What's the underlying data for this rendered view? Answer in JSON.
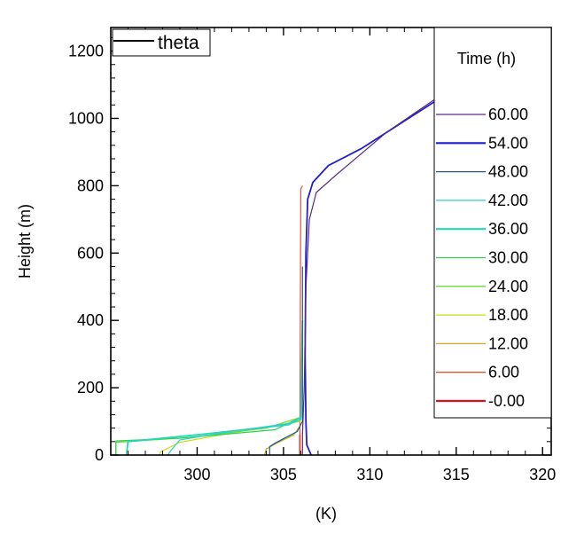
{
  "chart_data": {
    "type": "line",
    "xlabel": "(K)",
    "ylabel": "Height (m)",
    "xlim": [
      295,
      320.5
    ],
    "ylim": [
      0,
      1270
    ],
    "xticks": [
      300,
      305,
      310,
      315,
      320
    ],
    "yticks": [
      0,
      200,
      400,
      600,
      800,
      1000,
      1200
    ],
    "title_box": {
      "label": "theta"
    },
    "legend": {
      "title": "Time (h)",
      "placement": "right",
      "entries": [
        {
          "label": "60.00",
          "color": "#5b2a86"
        },
        {
          "label": "54.00",
          "color": "#1f1fcc"
        },
        {
          "label": "48.00",
          "color": "#1b5f8f"
        },
        {
          "label": "42.00",
          "color": "#33cccc"
        },
        {
          "label": "36.00",
          "color": "#22d9b8"
        },
        {
          "label": "30.00",
          "color": "#33cc55"
        },
        {
          "label": "24.00",
          "color": "#66dd33"
        },
        {
          "label": "18.00",
          "color": "#ccdd11"
        },
        {
          "label": "12.00",
          "color": "#ccaa22"
        },
        {
          "label": " 6.00",
          "color": "#dd5533"
        },
        {
          "label": "-0.00",
          "color": "#dd1111"
        }
      ]
    },
    "series": [
      {
        "name": "60.00",
        "color": "#5b2a86",
        "x": [
          306.1,
          306.1,
          306.2,
          306.3,
          306.5,
          306.9,
          308.0,
          311,
          315,
          320.2
        ],
        "y": [
          0,
          60,
          200,
          500,
          700,
          780,
          830,
          960,
          1100,
          1262
        ]
      },
      {
        "name": "54.00",
        "color": "#1f1fcc",
        "x": [
          306.6,
          306.35,
          306.3,
          306.25,
          306.3,
          306.4,
          306.7,
          307.6,
          309.5,
          320.2
        ],
        "y": [
          0,
          30,
          100,
          300,
          600,
          760,
          810,
          860,
          910,
          1262
        ]
      },
      {
        "name": "48.00",
        "color": "#1b5f8f",
        "x": [
          304.2,
          304.2,
          304.5,
          305.8,
          306.1,
          306.1
        ],
        "y": [
          0,
          25,
          35,
          70,
          100,
          560
        ]
      },
      {
        "name": "42.00",
        "color": "#33cccc",
        "x": [
          298.3,
          298.5,
          299.0,
          302,
          305.5,
          306.0,
          306.1
        ],
        "y": [
          0,
          15,
          45,
          70,
          95,
          105,
          400
        ]
      },
      {
        "name": "36.00",
        "color": "#22d9b8",
        "x": [
          295.9,
          296.0,
          300,
          305.3,
          306.0,
          306.1
        ],
        "y": [
          0,
          40,
          60,
          90,
          112,
          400
        ]
      },
      {
        "name": "30.00",
        "color": "#33cc55",
        "x": [
          295.3,
          295.3,
          299.0,
          304.5,
          306.0,
          306.1
        ],
        "y": [
          0,
          42,
          50,
          75,
          112,
          300
        ]
      },
      {
        "name": "24.00",
        "color": "#66dd33",
        "x": [
          295.3,
          295.3,
          299.5,
          304.0,
          306.0
        ],
        "y": [
          0,
          38,
          52,
          80,
          112
        ]
      },
      {
        "name": "18.00",
        "color": "#ccdd11",
        "x": [
          297.8,
          297.9,
          299.0,
          302.5,
          306.0
        ],
        "y": [
          0,
          10,
          38,
          70,
          100
        ]
      },
      {
        "name": "12.00",
        "color": "#ccaa22",
        "x": [
          303.9,
          304.0,
          304.6,
          305.6,
          306.0
        ],
        "y": [
          0,
          18,
          35,
          60,
          90
        ]
      },
      {
        "name": " 6.00",
        "color": "#dd5533",
        "x": [
          305.95,
          305.95,
          306.0,
          306.1
        ],
        "y": [
          0,
          60,
          790,
          800
        ]
      },
      {
        "name": "-0.00",
        "color": "#dd1111",
        "x": [
          305.95,
          305.95
        ],
        "y": [
          0,
          60
        ]
      }
    ]
  }
}
